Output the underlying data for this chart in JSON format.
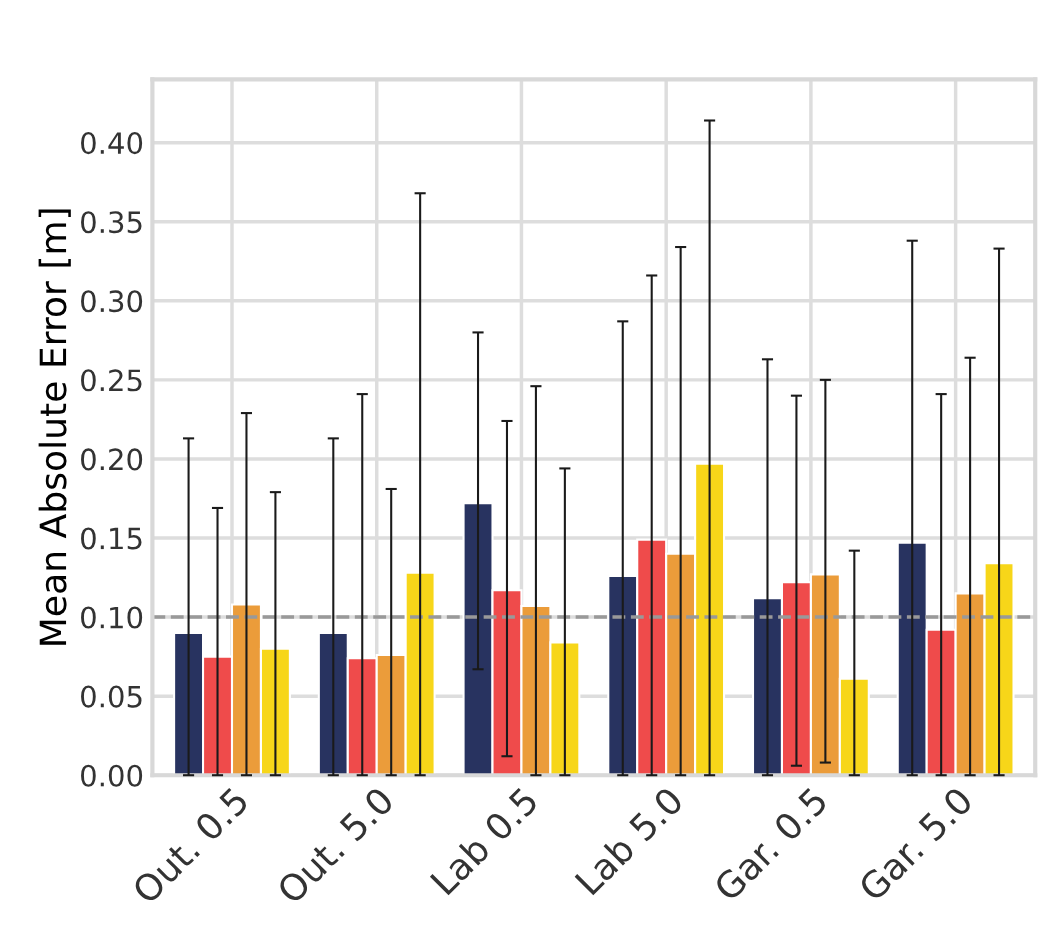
{
  "chart_data": {
    "type": "bar",
    "ylabel": "Mean Absolute Error [m]",
    "categories": [
      "Out. 0.5",
      "Out. 5.0",
      "Lab 0.5",
      "Lab 5.0",
      "Gar. 0.5",
      "Gar. 5.0"
    ],
    "series": [
      {
        "color": "#283360",
        "values": [
          0.09,
          0.09,
          0.172,
          0.126,
          0.112,
          0.147
        ],
        "errors": [
          [
            0,
            0.213
          ],
          [
            0,
            0.213
          ],
          [
            0.067,
            0.28
          ],
          [
            0,
            0.287
          ],
          [
            0,
            0.263
          ],
          [
            0,
            0.338
          ]
        ]
      },
      {
        "color": "#ef4b4b",
        "values": [
          0.075,
          0.074,
          0.117,
          0.149,
          0.122,
          0.092
        ],
        "errors": [
          [
            0,
            0.169
          ],
          [
            0,
            0.241
          ],
          [
            0.012,
            0.224
          ],
          [
            0,
            0.316
          ],
          [
            0.006,
            0.24
          ],
          [
            0,
            0.241
          ]
        ]
      },
      {
        "color": "#eb9c3a",
        "values": [
          0.108,
          0.076,
          0.107,
          0.14,
          0.127,
          0.115
        ],
        "errors": [
          [
            0,
            0.229
          ],
          [
            0,
            0.181
          ],
          [
            0,
            0.246
          ],
          [
            0,
            0.334
          ],
          [
            0.008,
            0.25
          ],
          [
            0,
            0.264
          ]
        ]
      },
      {
        "color": "#f7d619",
        "values": [
          0.08,
          0.128,
          0.084,
          0.197,
          0.061,
          0.134
        ],
        "errors": [
          [
            0,
            0.179
          ],
          [
            0,
            0.368
          ],
          [
            0,
            0.194
          ],
          [
            0,
            0.414
          ],
          [
            0,
            0.142
          ],
          [
            0,
            0.333
          ]
        ]
      }
    ],
    "ylim": [
      0,
      0.44
    ],
    "yticks": [
      {
        "value": 0,
        "label": "0.00"
      },
      {
        "value": 0.05,
        "label": "0.05"
      },
      {
        "value": 0.1,
        "label": "0.10"
      },
      {
        "value": 0.15,
        "label": "0.15"
      },
      {
        "value": 0.2,
        "label": "0.20"
      },
      {
        "value": 0.25,
        "label": "0.25"
      },
      {
        "value": 0.3,
        "label": "0.30"
      },
      {
        "value": 0.35,
        "label": "0.35"
      },
      {
        "value": 0.4,
        "label": "0.40"
      }
    ],
    "ref_lines": [
      {
        "axis": "y",
        "value": 0.1,
        "color": "#999999",
        "line_style": "dashed"
      }
    ],
    "grid": true
  }
}
